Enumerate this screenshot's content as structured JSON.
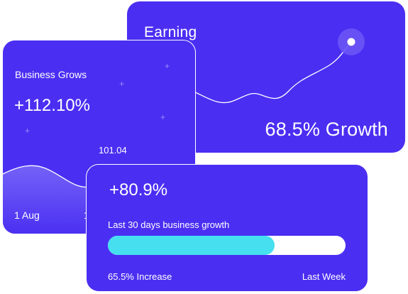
{
  "earning": {
    "title": "Earning",
    "growth": "68.5% Growth"
  },
  "business": {
    "title": "Business Grows",
    "value": "+112.10%",
    "point_label": "101.04",
    "x_labels": [
      "1 Aug",
      "1"
    ]
  },
  "progress": {
    "value": "+80.9%",
    "caption": "Last 30 days business growth",
    "fraction": 0.7,
    "increase_label": "65.5% Increase",
    "period_label": "Last Week"
  },
  "colors": {
    "card_bg": "#4a2ff2",
    "progress_fill": "#45dff0",
    "sparkle": "#9b8dff"
  },
  "icons": {
    "sparkle": "sparkle-icon"
  }
}
